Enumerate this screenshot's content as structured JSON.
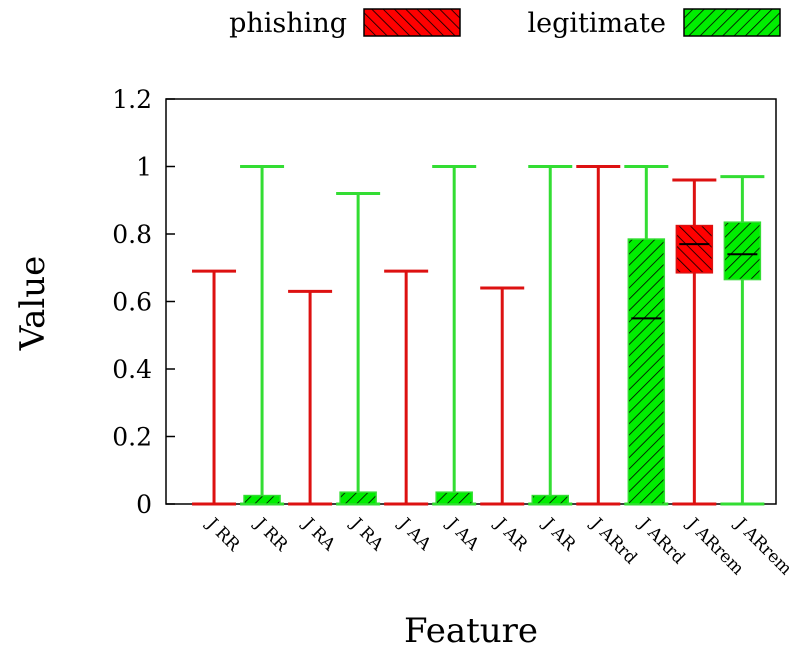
{
  "chart_data": {
    "type": "boxplot",
    "xlabel": "Feature",
    "ylabel": "Value",
    "ylim": [
      0,
      1.2
    ],
    "yticks": [
      "0",
      "0.2",
      "0.4",
      "0.6",
      "0.8",
      "1",
      "1.2"
    ],
    "legend": {
      "placement": "top",
      "entries": [
        {
          "name": "phishing",
          "color": "#ff0000",
          "hatch": "backslash"
        },
        {
          "name": "legitimate",
          "color": "#00ff00",
          "hatch": "slash"
        }
      ]
    },
    "colors": {
      "phishing_fill": "#ff0000",
      "phishing_line": "#dd1111",
      "legitimate_fill": "#00ee00",
      "legitimate_line": "#33dd33"
    },
    "categories": [
      "J RR",
      "J RR",
      "J RA",
      "J RA",
      "J AA",
      "J AA",
      "J AR",
      "J AR",
      "J ARrd",
      "J ARrd",
      "J ARrem",
      "J ARrem"
    ],
    "boxes": [
      {
        "category": "J RR",
        "series": "phishing",
        "min": 0,
        "q1": 0,
        "median": 0,
        "q3": 0,
        "max": 0.69
      },
      {
        "category": "J RR",
        "series": "legitimate",
        "min": 0,
        "q1": 0,
        "median": 0,
        "q3": 0.025,
        "max": 1.0
      },
      {
        "category": "J RA",
        "series": "phishing",
        "min": 0,
        "q1": 0,
        "median": 0,
        "q3": 0,
        "max": 0.63
      },
      {
        "category": "J RA",
        "series": "legitimate",
        "min": 0,
        "q1": 0,
        "median": 0,
        "q3": 0.035,
        "max": 0.92
      },
      {
        "category": "J AA",
        "series": "phishing",
        "min": 0,
        "q1": 0,
        "median": 0,
        "q3": 0,
        "max": 0.69
      },
      {
        "category": "J AA",
        "series": "legitimate",
        "min": 0,
        "q1": 0,
        "median": 0,
        "q3": 0.035,
        "max": 1.0
      },
      {
        "category": "J AR",
        "series": "phishing",
        "min": 0,
        "q1": 0,
        "median": 0,
        "q3": 0,
        "max": 0.64
      },
      {
        "category": "J AR",
        "series": "legitimate",
        "min": 0,
        "q1": 0,
        "median": 0,
        "q3": 0.025,
        "max": 1.0
      },
      {
        "category": "J ARrd",
        "series": "phishing",
        "min": 0,
        "q1": 0,
        "median": 0,
        "q3": 0,
        "max": 1.0
      },
      {
        "category": "J ARrd",
        "series": "legitimate",
        "min": 0,
        "q1": 0,
        "median": 0.55,
        "q3": 0.785,
        "max": 1.0
      },
      {
        "category": "J ARrem",
        "series": "phishing",
        "min": 0,
        "q1": 0.685,
        "median": 0.77,
        "q3": 0.825,
        "max": 0.96
      },
      {
        "category": "J ARrem",
        "series": "legitimate",
        "min": 0,
        "q1": 0.665,
        "median": 0.74,
        "q3": 0.835,
        "max": 0.97
      }
    ]
  }
}
